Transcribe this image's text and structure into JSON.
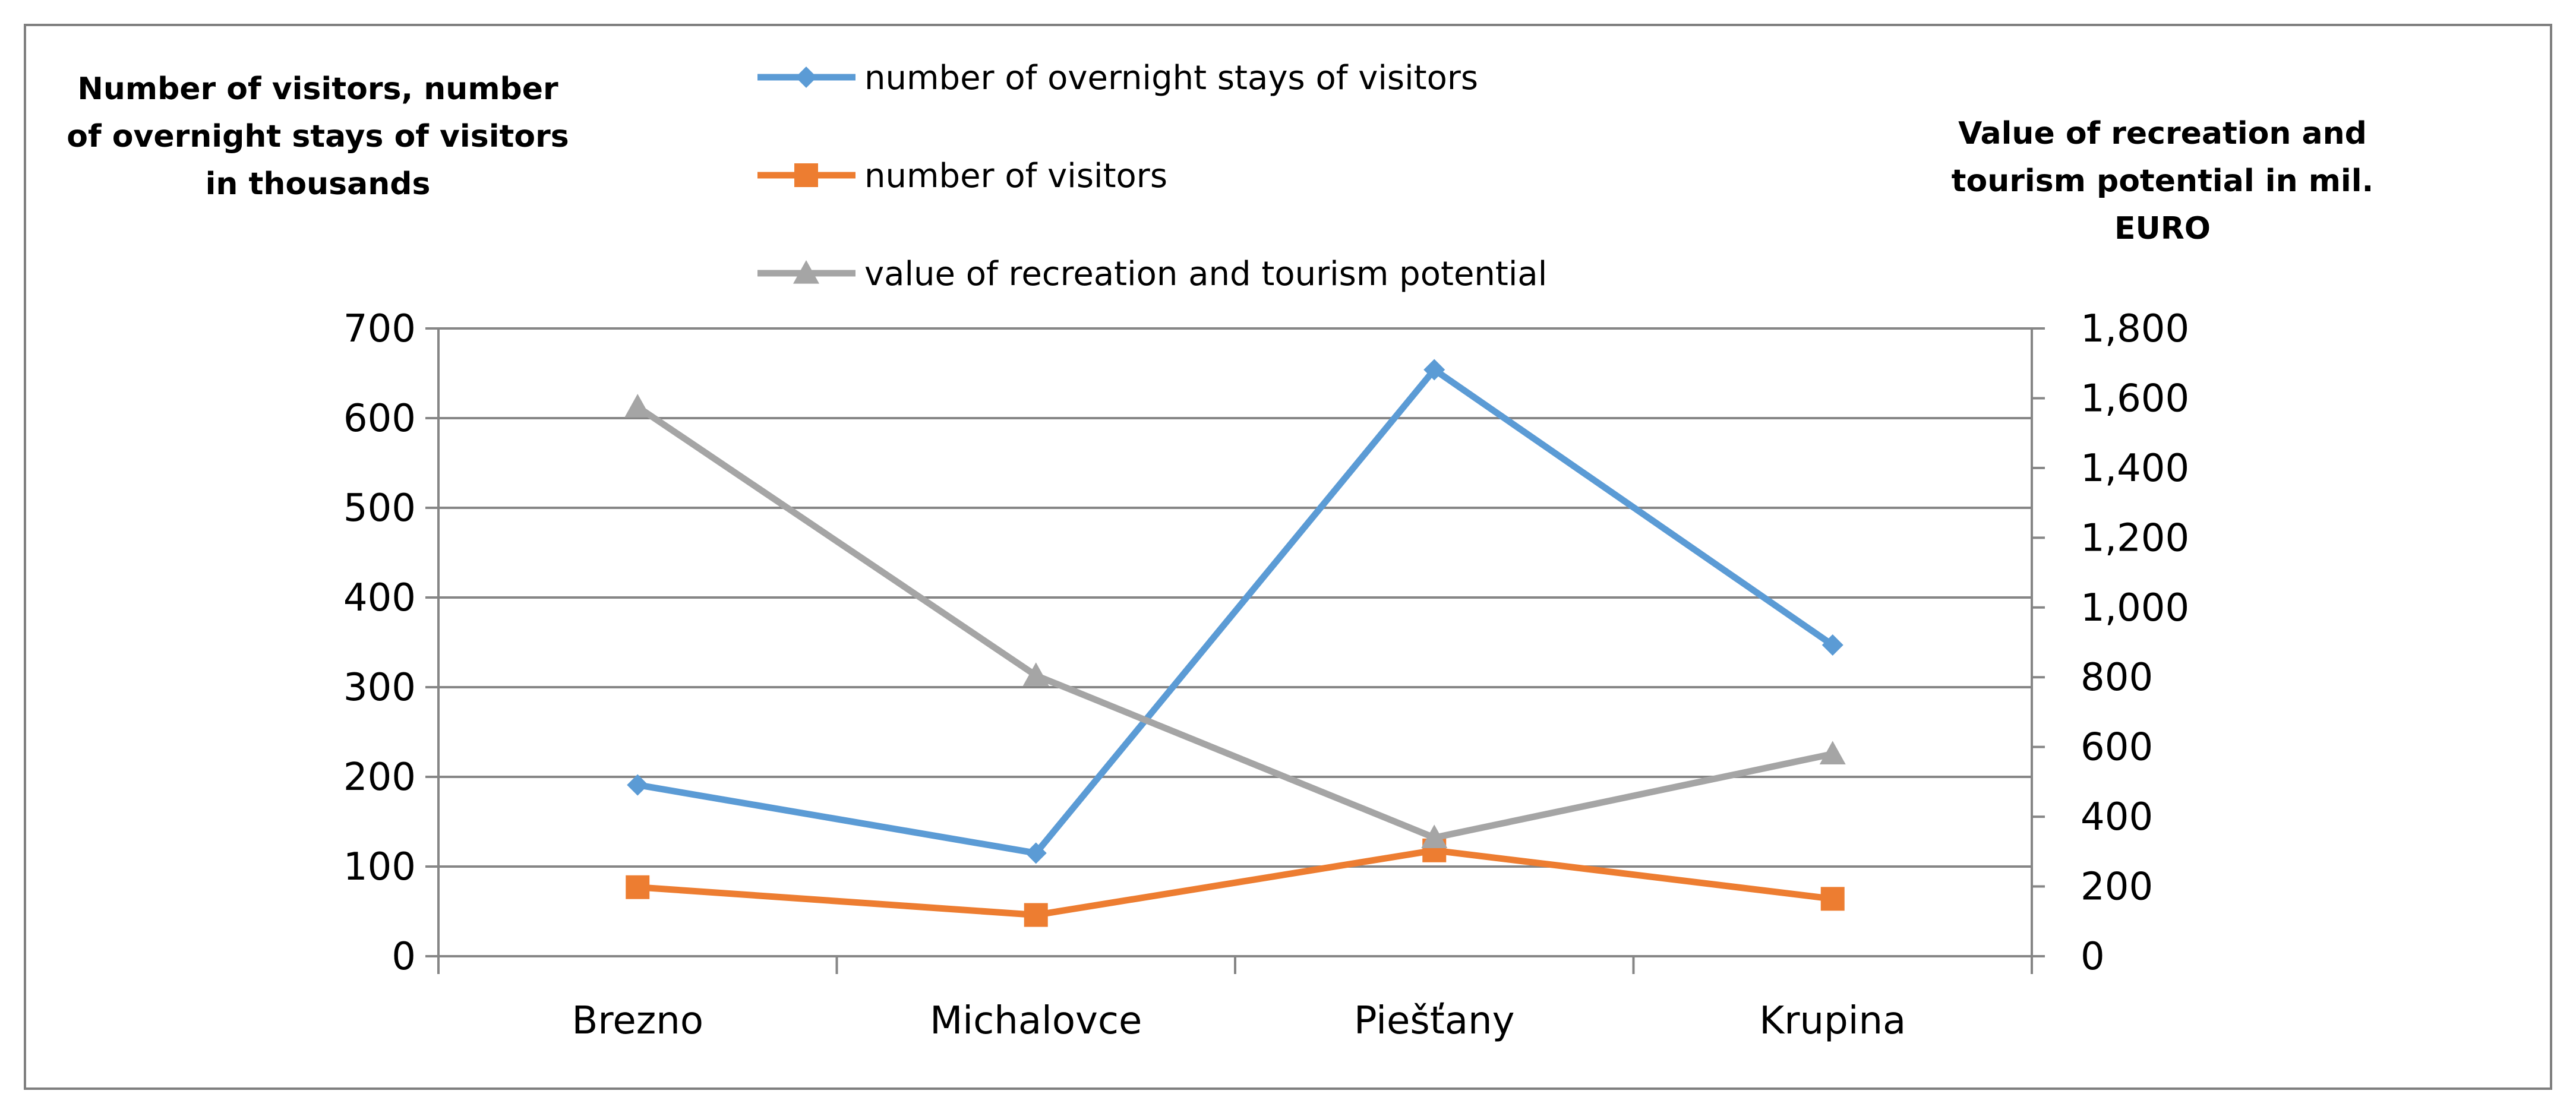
{
  "chart_data": {
    "type": "line",
    "categories": [
      "Brezno",
      "Michalovce",
      "Piešťany",
      "Krupina"
    ],
    "y_left_title": "Number of visitors, number of overnight stays of visitors in thousands",
    "y_left_title_lines": [
      "Number of visitors, number",
      "of overnight stays of visitors",
      "in thousands"
    ],
    "y_right_title": "Value of recreation and tourism potential in mil. EURO",
    "y_right_title_lines": [
      "Value of recreation and",
      "tourism potential in mil.",
      "EURO"
    ],
    "y_left_lim": [
      0,
      700
    ],
    "y_left_ticks": [
      "0",
      "100",
      "200",
      "300",
      "400",
      "500",
      "600",
      "700"
    ],
    "y_right_lim": [
      0,
      1800
    ],
    "y_right_ticks": [
      "0",
      "200",
      "400",
      "600",
      "800",
      "1,000",
      "1,200",
      "1,400",
      "1,600",
      "1,800"
    ],
    "grid": true,
    "legend_position": "top-center",
    "series": [
      {
        "name": "number of overnight stays of visitors",
        "axis": "left",
        "marker": "diamond",
        "color": "#5b9bd5",
        "values": [
          191,
          115,
          654,
          347
        ]
      },
      {
        "name": "number of visitors",
        "axis": "left",
        "marker": "square",
        "color": "#ed7d31",
        "values": [
          77,
          46,
          118,
          64
        ]
      },
      {
        "name": "value of recreation and tourism potential",
        "axis": "right",
        "marker": "triangle",
        "color": "#a5a5a5",
        "values": [
          1575,
          805,
          340,
          580
        ]
      }
    ]
  }
}
